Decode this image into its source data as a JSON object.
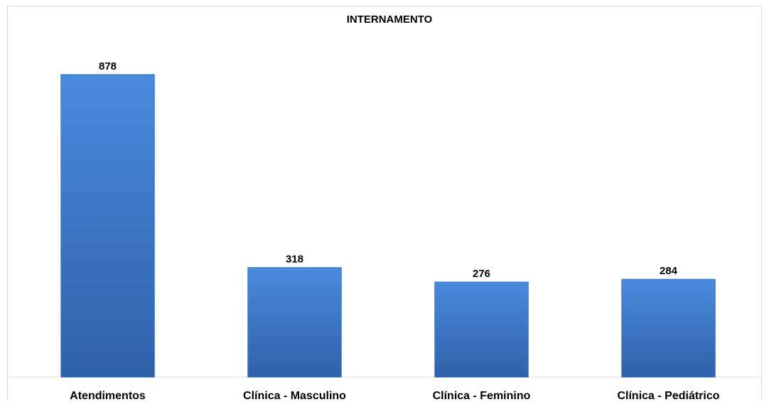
{
  "chart_data": {
    "type": "bar",
    "title": "INTERNAMENTO",
    "categories": [
      "Atendimentos",
      "Clínica - Masculino",
      "Clínica - Feminino",
      "Clínica - Pediátrico"
    ],
    "values": [
      878,
      318,
      276,
      284
    ],
    "ylim": [
      0,
      878
    ],
    "grid": false,
    "legend": "none",
    "colors": {
      "bar_top": "#4a8ade",
      "bar_bottom": "#2f61a8",
      "bar_edge": "#3a73c4",
      "baseline": "#d9d9d9"
    }
  }
}
